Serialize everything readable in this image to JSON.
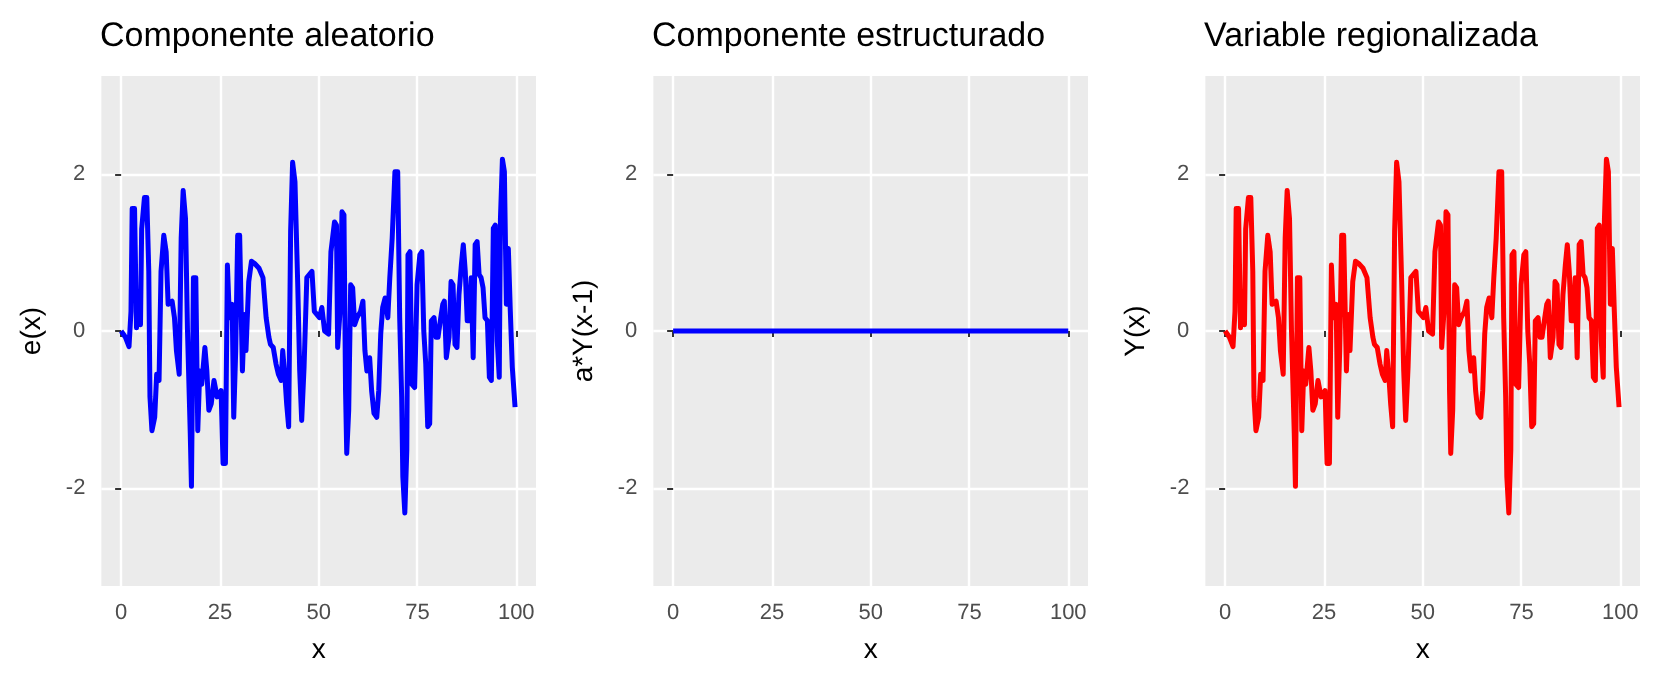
{
  "chart_data": [
    {
      "type": "line",
      "title": "Componente aleatorio",
      "xlabel": "x",
      "ylabel": "e(x)",
      "xlim": [
        -5,
        105
      ],
      "xticks": [
        0,
        25,
        50,
        75,
        100
      ],
      "ylim": [
        -3.25,
        3.25
      ],
      "yticks": [
        -2,
        0,
        2
      ],
      "grid": true,
      "series": [
        {
          "color": "#0000ff",
          "x": [
            0,
            1.1,
            2,
            2.5,
            2.8,
            3.4,
            3.9,
            4.4,
            4.9,
            5.2,
            5.9,
            6.5,
            7,
            7.3,
            7.8,
            8.5,
            9,
            9.6,
            10.1,
            10.8,
            11.4,
            11.9,
            12.9,
            13.5,
            14,
            14.7,
            15.2,
            15.7,
            16.3,
            16.8,
            17.5,
            17.8,
            18.3,
            18.9,
            19.4,
            19.9,
            20.4,
            21.2,
            21.7,
            22.2,
            22.8,
            23.5,
            24.3,
            25.3,
            25.8,
            26.4,
            26.9,
            27.4,
            28.1,
            28.5,
            29,
            29.5,
            30,
            30.7,
            31.2,
            31.6,
            32.3,
            33,
            33.8,
            34.9,
            35.9,
            36.7,
            37.4,
            37.8,
            38.5,
            39.2,
            39.8,
            40.5,
            40.9,
            41.4,
            41.9,
            42.4,
            42.9,
            43.4,
            44,
            44.7,
            45.2,
            45.7,
            46.3,
            47,
            48.3,
            48.9,
            50.2,
            50.8,
            51.5,
            52.5,
            53.1,
            54,
            54.5,
            54.8,
            55.4,
            55.9,
            56.4,
            56.8,
            57.1,
            57.6,
            58.1,
            58.6,
            59.1,
            59.7,
            60.6,
            61.2,
            61.7,
            62.2,
            62.9,
            63.4,
            64,
            64.7,
            65.2,
            65.7,
            66.2,
            66.8,
            67.5,
            68,
            68.6,
            69.3,
            70,
            70.5,
            71,
            71.3,
            71.8,
            72.3,
            72.6,
            73.1,
            73.6,
            74.3,
            74.9,
            75.6,
            76.1,
            76.6,
            77.1,
            77.6,
            78.1,
            78.5,
            79.2,
            79.7,
            80.2,
            80.9,
            81.4,
            81.8,
            82.3,
            83,
            83.5,
            84,
            84.5,
            85,
            85.5,
            86.1,
            86.6,
            87.1,
            87.6,
            88.1,
            88.6,
            89.1,
            89.6,
            90.1,
            90.6,
            91.1,
            91.6,
            92.1,
            92.7,
            93.2,
            93.7,
            94.2,
            94.7,
            95.2,
            95.7,
            96,
            96.5,
            97,
            97.5,
            98,
            98.5,
            99,
            99.7,
            100
          ],
          "values": [
            0,
            -0.08,
            -0.2,
            0.25,
            1.56,
            1.56,
            0.04,
            0.5,
            0.08,
            1.3,
            1.7,
            1.7,
            0.76,
            -0.84,
            -1.27,
            -1.1,
            -0.55,
            -0.63,
            0.76,
            1.22,
            1.01,
            0.34,
            0.38,
            0.17,
            -0.25,
            -0.55,
            1.18,
            1.79,
            1.43,
            0,
            -1.31,
            -1.98,
            0.68,
            0.68,
            -1.27,
            -0.51,
            -0.68,
            -0.21,
            -0.51,
            -1.01,
            -0.93,
            -0.63,
            -0.84,
            -0.76,
            -1.69,
            -1.69,
            0.84,
            0.17,
            0.34,
            -1.1,
            -0.25,
            1.22,
            1.22,
            -0.51,
            0.21,
            -0.25,
            0.63,
            0.89,
            0.86,
            0.8,
            0.68,
            0.17,
            -0.08,
            -0.17,
            -0.21,
            -0.42,
            -0.55,
            -0.63,
            -0.25,
            -0.55,
            -0.93,
            -1.22,
            1.27,
            2.15,
            1.9,
            0.59,
            -0.51,
            -1.14,
            -0.46,
            0.68,
            0.76,
            0.25,
            0.17,
            0.3,
            0,
            -0.04,
            1.01,
            1.39,
            1.35,
            -0.21,
            0.25,
            1.52,
            1.48,
            -0.76,
            -1.56,
            -1.01,
            0.59,
            0.55,
            0.08,
            0.17,
            0.25,
            0.38,
            -0.25,
            -0.51,
            -0.34,
            -0.76,
            -1.05,
            -1.1,
            -0.76,
            -0.04,
            0.3,
            0.42,
            0.17,
            0.68,
            1.18,
            2.03,
            2.03,
            0.17,
            -0.84,
            -1.86,
            -2.32,
            -1.52,
            0.97,
            1.01,
            -0.68,
            -0.72,
            0.59,
            0.97,
            1.01,
            0,
            -0.42,
            -1.22,
            -1.18,
            0.13,
            0.17,
            -0.08,
            -0.08,
            0.17,
            0.34,
            0.38,
            -0.34,
            -0.08,
            0.63,
            0.59,
            -0.17,
            -0.21,
            0.46,
            0.84,
            1.1,
            0.76,
            0.13,
            0.13,
            0.68,
            -0.34,
            1.1,
            1.14,
            0.72,
            0.68,
            0.55,
            0.17,
            0.13,
            -0.59,
            -0.63,
            1.31,
            1.35,
            -0.13,
            -0.59,
            1.43,
            2.19,
            2.03,
            0.34,
            1.05,
            0.25,
            -0.46,
            -0.97,
            -0.97
          ]
        }
      ]
    },
    {
      "type": "line",
      "title": "Componente estructurado",
      "xlabel": "x",
      "ylabel": "a*Y(x-1)",
      "xlim": [
        -5,
        105
      ],
      "xticks": [
        0,
        25,
        50,
        75,
        100
      ],
      "ylim": [
        -3.25,
        3.25
      ],
      "yticks": [
        -2,
        0,
        2
      ],
      "grid": true,
      "series": [
        {
          "color": "#0000ff",
          "x": [
            0,
            100
          ],
          "values": [
            0,
            0
          ]
        }
      ]
    },
    {
      "type": "line",
      "title": "Variable regionalizada",
      "xlabel": "x",
      "ylabel": "Y(x)",
      "xlim": [
        -5,
        105
      ],
      "xticks": [
        0,
        25,
        50,
        75,
        100
      ],
      "ylim": [
        -3.25,
        3.25
      ],
      "yticks": [
        -2,
        0,
        2
      ],
      "grid": true,
      "series": [
        {
          "color": "#ff0000",
          "x": [
            0,
            1.1,
            2,
            2.5,
            2.8,
            3.4,
            3.9,
            4.4,
            4.9,
            5.2,
            5.9,
            6.5,
            7,
            7.3,
            7.8,
            8.5,
            9,
            9.6,
            10.1,
            10.8,
            11.4,
            11.9,
            12.9,
            13.5,
            14,
            14.7,
            15.2,
            15.7,
            16.3,
            16.8,
            17.5,
            17.8,
            18.3,
            18.9,
            19.4,
            19.9,
            20.4,
            21.2,
            21.7,
            22.2,
            22.8,
            23.5,
            24.3,
            25.3,
            25.8,
            26.4,
            26.9,
            27.4,
            28.1,
            28.5,
            29,
            29.5,
            30,
            30.7,
            31.2,
            31.6,
            32.3,
            33,
            33.8,
            34.9,
            35.9,
            36.7,
            37.4,
            37.8,
            38.5,
            39.2,
            39.8,
            40.5,
            40.9,
            41.4,
            41.9,
            42.4,
            42.9,
            43.4,
            44,
            44.7,
            45.2,
            45.7,
            46.3,
            47,
            48.3,
            48.9,
            50.2,
            50.8,
            51.5,
            52.5,
            53.1,
            54,
            54.5,
            54.8,
            55.4,
            55.9,
            56.4,
            56.8,
            57.1,
            57.6,
            58.1,
            58.6,
            59.1,
            59.7,
            60.6,
            61.2,
            61.7,
            62.2,
            62.9,
            63.4,
            64,
            64.7,
            65.2,
            65.7,
            66.2,
            66.8,
            67.5,
            68,
            68.6,
            69.3,
            70,
            70.5,
            71,
            71.3,
            71.8,
            72.3,
            72.6,
            73.1,
            73.6,
            74.3,
            74.9,
            75.6,
            76.1,
            76.6,
            77.1,
            77.6,
            78.1,
            78.5,
            79.2,
            79.7,
            80.2,
            80.9,
            81.4,
            81.8,
            82.3,
            83,
            83.5,
            84,
            84.5,
            85,
            85.5,
            86.1,
            86.6,
            87.1,
            87.6,
            88.1,
            88.6,
            89.1,
            89.6,
            90.1,
            90.6,
            91.1,
            91.6,
            92.1,
            92.7,
            93.2,
            93.7,
            94.2,
            94.7,
            95.2,
            95.7,
            96,
            96.5,
            97,
            97.5,
            98,
            98.5,
            99,
            99.7,
            100
          ],
          "values": [
            0,
            -0.08,
            -0.2,
            0.25,
            1.56,
            1.56,
            0.04,
            0.5,
            0.08,
            1.3,
            1.7,
            1.7,
            0.76,
            -0.84,
            -1.27,
            -1.1,
            -0.55,
            -0.63,
            0.76,
            1.22,
            1.01,
            0.34,
            0.38,
            0.17,
            -0.25,
            -0.55,
            1.18,
            1.79,
            1.43,
            0,
            -1.31,
            -1.98,
            0.68,
            0.68,
            -1.27,
            -0.51,
            -0.68,
            -0.21,
            -0.51,
            -1.01,
            -0.93,
            -0.63,
            -0.84,
            -0.76,
            -1.69,
            -1.69,
            0.84,
            0.17,
            0.34,
            -1.1,
            -0.25,
            1.22,
            1.22,
            -0.51,
            0.21,
            -0.25,
            0.63,
            0.89,
            0.86,
            0.8,
            0.68,
            0.17,
            -0.08,
            -0.17,
            -0.21,
            -0.42,
            -0.55,
            -0.63,
            -0.25,
            -0.55,
            -0.93,
            -1.22,
            1.27,
            2.15,
            1.9,
            0.59,
            -0.51,
            -1.14,
            -0.46,
            0.68,
            0.76,
            0.25,
            0.17,
            0.3,
            0,
            -0.04,
            1.01,
            1.39,
            1.35,
            -0.21,
            0.25,
            1.52,
            1.48,
            -0.76,
            -1.56,
            -1.01,
            0.59,
            0.55,
            0.08,
            0.17,
            0.25,
            0.38,
            -0.25,
            -0.51,
            -0.34,
            -0.76,
            -1.05,
            -1.1,
            -0.76,
            -0.04,
            0.3,
            0.42,
            0.17,
            0.68,
            1.18,
            2.03,
            2.03,
            0.17,
            -0.84,
            -1.86,
            -2.32,
            -1.52,
            0.97,
            1.01,
            -0.68,
            -0.72,
            0.59,
            0.97,
            1.01,
            0,
            -0.42,
            -1.22,
            -1.18,
            0.13,
            0.17,
            -0.08,
            -0.08,
            0.17,
            0.34,
            0.38,
            -0.34,
            -0.08,
            0.63,
            0.59,
            -0.17,
            -0.21,
            0.46,
            0.84,
            1.1,
            0.76,
            0.13,
            0.13,
            0.68,
            -0.34,
            1.1,
            1.14,
            0.72,
            0.68,
            0.55,
            0.17,
            0.13,
            -0.59,
            -0.63,
            1.31,
            1.35,
            -0.13,
            -0.59,
            1.43,
            2.19,
            2.03,
            0.34,
            1.05,
            0.25,
            -0.46,
            -0.97,
            -0.97
          ]
        }
      ]
    }
  ]
}
